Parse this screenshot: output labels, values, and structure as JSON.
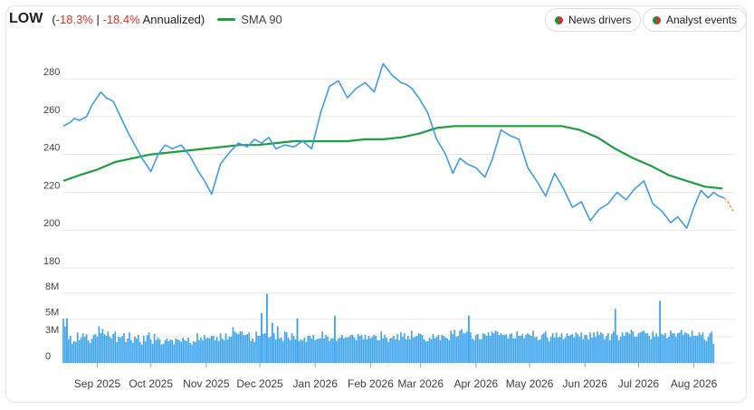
{
  "header": {
    "ticker": "LOW",
    "open_paren": "(",
    "return_total": "-18.3%",
    "separator": " | ",
    "return_annualized": "-18.4%",
    "annualized_label": " Annualized)",
    "sma_label": "SMA 90"
  },
  "buttons": {
    "news_drivers": "News drivers",
    "analyst_events": "Analyst events"
  },
  "colors": {
    "price": "#3d9be9",
    "sma": "#1e9e3e",
    "forecast": "#f5a623",
    "volume": "#3aa3ef",
    "negative": "#d93025",
    "grid": "#e8e8e8"
  },
  "chart_data": {
    "type": "line",
    "price_axis": {
      "ticks": [
        180,
        200,
        220,
        240,
        260,
        280
      ],
      "ylim": [
        180,
        292
      ]
    },
    "volume_axis": {
      "ticks": [
        "0",
        "3M",
        "5M",
        "8M"
      ],
      "tick_values": [
        0,
        3,
        5,
        8
      ],
      "ylim": [
        0,
        8.6
      ],
      "unit": "millions"
    },
    "x_ticks": [
      "Sep 2025",
      "Oct 2025",
      "Nov 2025",
      "Dec 2025",
      "Jan 2026",
      "Feb 2026",
      "Mar 2026",
      "Apr 2026",
      "May 2026",
      "Jun 2026",
      "Jul 2026",
      "Aug 2026"
    ],
    "x_range_days": [
      -20,
      357
    ],
    "series": [
      {
        "name": "LOW",
        "type": "line",
        "days": [
          -19,
          -15,
          -13,
          -10,
          -6,
          -3,
          2,
          5,
          9,
          13,
          17,
          21,
          25,
          30,
          34,
          38,
          42,
          47,
          52,
          56,
          60,
          64,
          69,
          74,
          79,
          84,
          88,
          92,
          96,
          100,
          105,
          110,
          115,
          120,
          125,
          130,
          135,
          140,
          145,
          150,
          155,
          160,
          165,
          170,
          173,
          176,
          180,
          185,
          190,
          195,
          199,
          203,
          207,
          212,
          217,
          221,
          226,
          231,
          236,
          241,
          246,
          251,
          256,
          261,
          266,
          271,
          276,
          281,
          286,
          291,
          296,
          301,
          306,
          311,
          316,
          321,
          325,
          330,
          334,
          338,
          342,
          345,
          348,
          351
        ],
        "values": [
          255,
          257,
          259,
          258,
          260,
          266,
          273,
          270,
          268,
          260,
          252,
          245,
          238,
          231,
          240,
          245,
          243,
          245,
          239,
          232,
          226,
          219,
          235,
          241,
          246,
          244,
          248,
          246,
          249,
          243,
          245,
          244,
          247,
          243,
          262,
          276,
          279,
          270,
          275,
          278,
          273,
          288,
          282,
          278,
          277,
          275,
          270,
          262,
          248,
          240,
          230,
          238,
          235,
          233,
          228,
          237,
          253,
          250,
          248,
          233,
          226,
          218,
          230,
          222,
          212,
          215,
          205,
          211,
          214,
          220,
          216,
          222,
          226,
          214,
          210,
          204,
          207,
          201,
          212,
          221,
          217,
          220,
          218,
          217
        ]
      },
      {
        "name": "SMA 90",
        "type": "line",
        "days": [
          -19,
          -10,
          0,
          10,
          20,
          30,
          40,
          50,
          60,
          70,
          80,
          90,
          100,
          110,
          120,
          130,
          140,
          150,
          160,
          170,
          180,
          190,
          200,
          210,
          220,
          230,
          240,
          250,
          260,
          270,
          280,
          290,
          300,
          310,
          320,
          330,
          340,
          350
        ],
        "values": [
          226,
          229,
          232,
          236,
          238,
          240,
          241,
          242,
          243,
          244,
          245,
          245,
          246,
          247,
          247,
          247,
          247,
          248,
          248,
          249,
          251,
          254,
          255,
          255,
          255,
          255,
          255,
          255,
          255,
          253,
          249,
          243,
          238,
          234,
          229,
          226,
          223,
          222
        ]
      },
      {
        "type": "line",
        "days": [
          351,
          353,
          356
        ],
        "values": [
          217,
          215,
          210
        ]
      },
      {
        "name": "Volume",
        "type": "bar",
        "unit": "millions",
        "start_day": -19,
        "volume_peaks": [
          {
            "day": -17,
            "value": 5.1
          },
          {
            "day": 92,
            "value": 5.7
          },
          {
            "day": 95,
            "value": 7.9
          },
          {
            "day": 98,
            "value": 4.6
          },
          {
            "day": 101,
            "value": 4.2
          },
          {
            "day": 112,
            "value": 5.1
          },
          {
            "day": 133,
            "value": 5.4
          },
          {
            "day": 208,
            "value": 5.4
          },
          {
            "day": 290,
            "value": 6.2
          },
          {
            "day": 315,
            "value": 7.1
          }
        ],
        "values": [
          5.1,
          4.2,
          3.4,
          2.7,
          3.1,
          2.2,
          2.5,
          2.4,
          3.5,
          2.6,
          2.9,
          3.4,
          3.0,
          3.3,
          2.6,
          2.3,
          2.8,
          3.2,
          3.3,
          3.0,
          4.2,
          3.4,
          3.9,
          3.3,
          3.1,
          3.6,
          3.0,
          2.8,
          3.3,
          3.6,
          2.4,
          3.0,
          2.9,
          3.1,
          3.4,
          2.4,
          2.8,
          3.5,
          2.6,
          2.3,
          3.0,
          2.8,
          3.2,
          2.4,
          2.1,
          3.1,
          2.5,
          3.2,
          3.5,
          2.7,
          2.2,
          3.3,
          2.6,
          2.9,
          2.7,
          2.1,
          2.2,
          2.6,
          2.8,
          2.5,
          2.7,
          2.6,
          2.1,
          2.8,
          2.7,
          2.6,
          2.4,
          2.9,
          2.6,
          2.5,
          2.9,
          2.3,
          2.1,
          2.5,
          2.4,
          3.4,
          2.6,
          2.9,
          2.6,
          3.2,
          2.8,
          2.9,
          2.8,
          3.1,
          3.1,
          2.6,
          3.0,
          2.5,
          3.4,
          2.8,
          2.6,
          3.4,
          2.7,
          3.0,
          3.0,
          4.1,
          3.6,
          3.4,
          3.3,
          3.6,
          3.6,
          3.2,
          3.2,
          3.3,
          3.5,
          2.5,
          2.8,
          2.4,
          3.6,
          3.1,
          3.1,
          3.5,
          3.3,
          3.4,
          3.1,
          2.9,
          3.0,
          2.5,
          3.4,
          2.7,
          3.3,
          2.8,
          2.9,
          2.5,
          3.6,
          3.5,
          2.9,
          2.6,
          3.4,
          3.1,
          2.7,
          3.1,
          2.5,
          2.7,
          2.6,
          2.9,
          2.4,
          3.1,
          3.1,
          2.8,
          3.2,
          2.6,
          2.7,
          2.8,
          2.8,
          3.6,
          2.8,
          3.2,
          3.0,
          2.5,
          2.8,
          2.8,
          2.9,
          2.5,
          2.8,
          2.9,
          3.2,
          2.8,
          2.9,
          2.9,
          3.0,
          3.2,
          3.2,
          2.9,
          2.6,
          3.3,
          3.1,
          3.2,
          2.7,
          3.2,
          2.7,
          3.1,
          2.8,
          3.0,
          3.2,
          3.1,
          2.6,
          2.6,
          3.6,
          2.8,
          3.2,
          2.9,
          2.4,
          2.8,
          2.9,
          3.1,
          2.7,
          3.3,
          2.6,
          3.5,
          3.0,
          3.4,
          2.7,
          3.1,
          2.7,
          3.7,
          2.9,
          3.0,
          3.1,
          3.4,
          3.3,
          3.2,
          2.7,
          2.5,
          2.5,
          2.9,
          2.7,
          3.3,
          2.8,
          3.0,
          3.2,
          2.6,
          3.2,
          3.1,
          2.9,
          2.8,
          2.6,
          3.7,
          3.3,
          3.8,
          3.0,
          3.1,
          3.7,
          3.9,
          3.4,
          3.4,
          3.6,
          3.4,
          3.5,
          2.8,
          2.6,
          3.2,
          3.3,
          2.7,
          2.7,
          3.4,
          3.3,
          3.1,
          3.5,
          3.1,
          3.6,
          3.4,
          3.7,
          3.6,
          3.2,
          3.4,
          3.2,
          3.2,
          3.3,
          2.8,
          3.3,
          3.4,
          2.8,
          2.8,
          3.6,
          3.1,
          3.1,
          3.3,
          2.8,
          3.2,
          3.4,
          3.2,
          3.1,
          3.7,
          2.9,
          3.0,
          2.6,
          2.7,
          3.2,
          3.4,
          3.6,
          2.9,
          2.5,
          3.0,
          3.4,
          2.9,
          3.5,
          2.9,
          3.0,
          3.4,
          2.7,
          2.9,
          3.4,
          3.1,
          3.2,
          3.3,
          2.9,
          3.5,
          3.3,
          3.0,
          3.5,
          2.7,
          3.2,
          3.2,
          2.7,
          3.5,
          2.9,
          3.5,
          3.0,
          3.6,
          3.2,
          3.5,
          3.3,
          2.7,
          3.1,
          3.4,
          2.6,
          3.3,
          3.6,
          2.6,
          3.2,
          2.6,
          3.0,
          3.5,
          3.1,
          3.5,
          3.5,
          3.3,
          3.8,
          3.6,
          3.0,
          3.0,
          3.4,
          3.5,
          3.6,
          3.7,
          3.4,
          3.4,
          3.1,
          2.7,
          3.6,
          3.0,
          3.4,
          3.0,
          2.6,
          3.3,
          3.2,
          3.4,
          2.8,
          3.0,
          3.7,
          3.4,
          3.4,
          3.0,
          3.4,
          3.5,
          3.8,
          3.2,
          3.5,
          3.4,
          3.3,
          3.0,
          3.7,
          3.1,
          3.1,
          3.1,
          3.5,
          3.2,
          3.5,
          2.7,
          2.5,
          3.0,
          3.4,
          3.6,
          2.2
        ]
      }
    ]
  }
}
